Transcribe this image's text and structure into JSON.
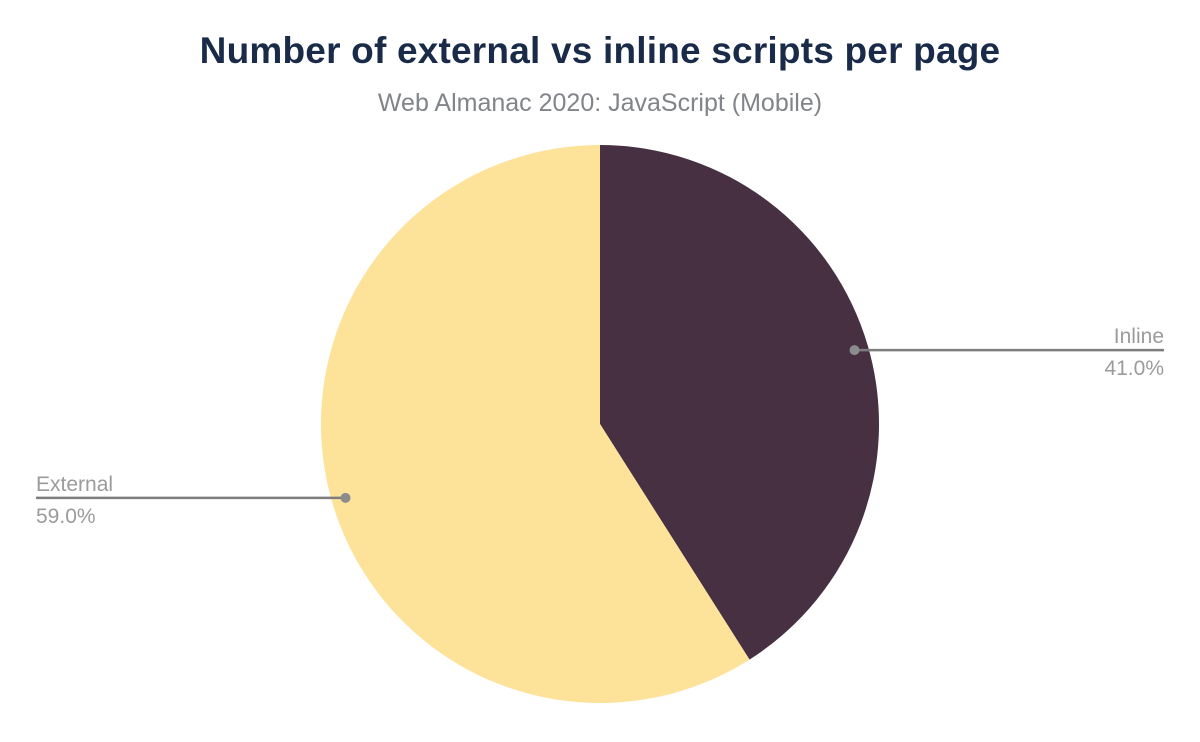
{
  "chart": {
    "title": "Number of external vs inline scripts per page",
    "subtitle": "Web Almanac 2020: JavaScript (Mobile)"
  },
  "chart_data": {
    "type": "pie",
    "title": "Number of external vs inline scripts per page",
    "subtitle": "Web Almanac 2020: JavaScript (Mobile)",
    "start_angle": "top",
    "direction": "clockwise",
    "labels_position": "outside-callouts",
    "legend": "none",
    "slices": [
      {
        "label": "Inline",
        "value": 41.0,
        "percent_label": "41.0%",
        "color": "#483043"
      },
      {
        "label": "External",
        "value": 59.0,
        "percent_label": "59.0%",
        "color": "#fde39a"
      }
    ],
    "colors": {
      "title_text": "#1a2b49",
      "subtitle_text": "#818589",
      "callout_text": "#9b9b9b",
      "callout_line": "#7d7d7d",
      "callout_dot": "#8c8c8c",
      "background": "#ffffff"
    }
  }
}
